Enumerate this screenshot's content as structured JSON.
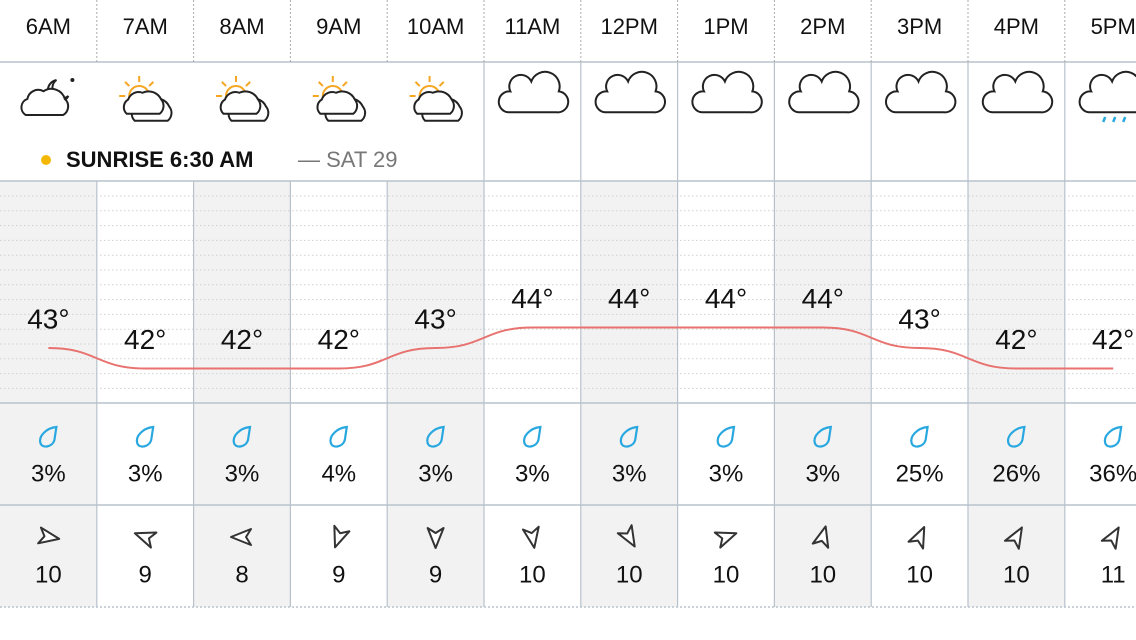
{
  "hours": [
    "6AM",
    "7AM",
    "8AM",
    "9AM",
    "10AM",
    "11AM",
    "12PM",
    "1PM",
    "2PM",
    "3PM",
    "4PM",
    "5PM"
  ],
  "sunrise": {
    "label": "SUNRISE 6:30 AM",
    "date": "— SAT 29"
  },
  "temperatures": [
    {
      "value": 43,
      "label": "43°"
    },
    {
      "value": 42,
      "label": "42°"
    },
    {
      "value": 42,
      "label": "42°"
    },
    {
      "value": 42,
      "label": "42°"
    },
    {
      "value": 43,
      "label": "43°"
    },
    {
      "value": 44,
      "label": "44°"
    },
    {
      "value": 44,
      "label": "44°"
    },
    {
      "value": 44,
      "label": "44°"
    },
    {
      "value": 44,
      "label": "44°"
    },
    {
      "value": 43,
      "label": "43°"
    },
    {
      "value": 42,
      "label": "42°"
    },
    {
      "value": 42,
      "label": "42°"
    }
  ],
  "precipitation": [
    "3%",
    "3%",
    "3%",
    "4%",
    "3%",
    "3%",
    "3%",
    "3%",
    "3%",
    "25%",
    "26%",
    "36%"
  ],
  "wind_speeds": [
    10,
    9,
    8,
    9,
    9,
    10,
    10,
    10,
    10,
    10,
    10,
    11
  ]
}
